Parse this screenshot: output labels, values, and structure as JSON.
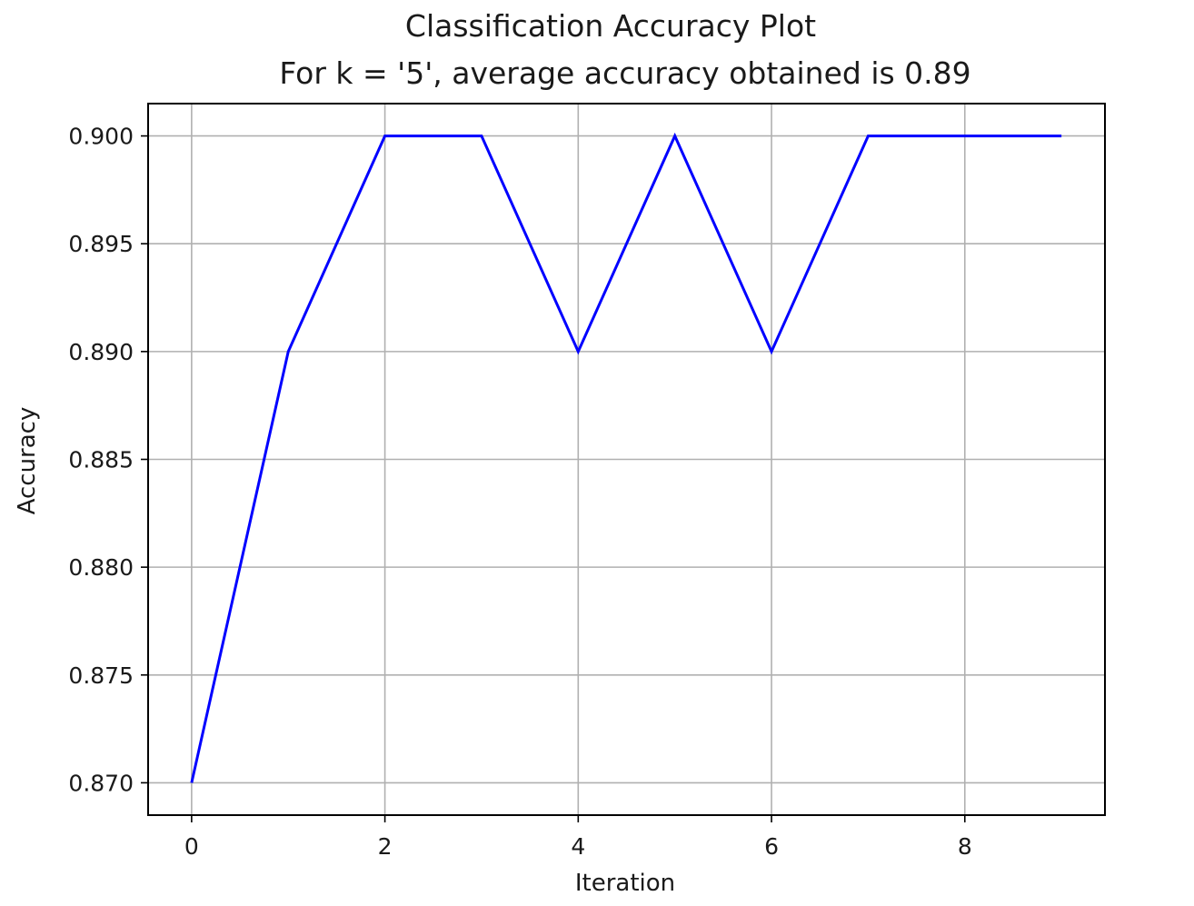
{
  "chart_data": {
    "type": "line",
    "title": "Classification Accuracy Plot",
    "subtitle": "For k = '5', average accuracy obtained is 0.89",
    "xlabel": "Iteration",
    "ylabel": "Accuracy",
    "xlim": [
      -0.45,
      9.45
    ],
    "ylim": [
      0.8685,
      0.9015
    ],
    "xticks": [
      0,
      2,
      4,
      6,
      8
    ],
    "xtick_labels": [
      "0",
      "2",
      "4",
      "6",
      "8"
    ],
    "yticks": [
      0.87,
      0.875,
      0.88,
      0.885,
      0.89,
      0.895,
      0.9
    ],
    "ytick_labels": [
      "0.870",
      "0.875",
      "0.880",
      "0.885",
      "0.890",
      "0.895",
      "0.900"
    ],
    "grid": true,
    "series": [
      {
        "color": "#0000ff",
        "x": [
          0,
          1,
          2,
          3,
          4,
          5,
          6,
          7,
          8,
          9
        ],
        "values": [
          0.87,
          0.89,
          0.9,
          0.9,
          0.89,
          0.9,
          0.89,
          0.9,
          0.9,
          0.9
        ]
      }
    ]
  }
}
